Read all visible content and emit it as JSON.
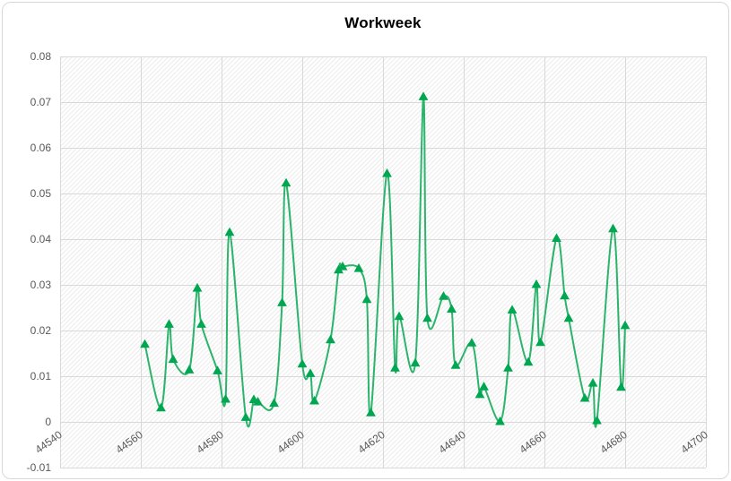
{
  "chart_data": {
    "type": "line",
    "title": "Workweek",
    "series_name": "Workweek",
    "marker": "triangle-up",
    "smoothed": true,
    "grid": true,
    "plot_fill_pattern": "light-upward-diagonal-hatch",
    "xlim": [
      44540,
      44700
    ],
    "ylim": [
      -0.01,
      0.08
    ],
    "x_tick_labels": [
      "44540",
      "44560",
      "44580",
      "44600",
      "44620",
      "44640",
      "44660",
      "44680",
      "44700"
    ],
    "x_tick_values": [
      44540,
      44560,
      44580,
      44600,
      44620,
      44640,
      44660,
      44680,
      44700
    ],
    "y_tick_labels": [
      "0.08",
      "0.07",
      "0.06",
      "0.05",
      "0.04",
      "0.03",
      "0.02",
      "0.01",
      "0",
      "-0.01"
    ],
    "y_tick_values": [
      0.08,
      0.07,
      0.06,
      0.05,
      0.04,
      0.03,
      0.02,
      0.01,
      0,
      -0.01
    ],
    "x": [
      44561,
      44565,
      44567,
      44568,
      44572,
      44574,
      44575,
      44579,
      44581,
      44582,
      44586,
      44588,
      44589,
      44593,
      44595,
      44596,
      44600,
      44602,
      44603,
      44607,
      44609,
      44610,
      44614,
      44616,
      44617,
      44621,
      44623,
      44624,
      44628,
      44630,
      44631,
      44635,
      44637,
      44638,
      44642,
      44644,
      44645,
      44649,
      44651,
      44652,
      44656,
      44658,
      44659,
      44663,
      44665,
      44666,
      44670,
      44672,
      44673,
      44677,
      44679,
      44680
    ],
    "values": [
      0.017,
      0.0031,
      0.0214,
      0.0137,
      0.0114,
      0.0293,
      0.0214,
      0.0112,
      0.005,
      0.0415,
      0.001,
      0.0049,
      0.0044,
      0.0041,
      0.0261,
      0.0523,
      0.0127,
      0.0106,
      0.0046,
      0.018,
      0.0333,
      0.034,
      0.0336,
      0.0268,
      0.002,
      0.0544,
      0.0118,
      0.0231,
      0.0129,
      0.0712,
      0.0227,
      0.0275,
      0.0247,
      0.0124,
      0.0173,
      0.006,
      0.0077,
      0.0001,
      0.0118,
      0.0245,
      0.0131,
      0.0301,
      0.0174,
      0.0402,
      0.0276,
      0.0227,
      0.0052,
      0.0085,
      0.0003,
      0.0423,
      0.0076,
      0.0211
    ],
    "colors": {
      "marker": "#00a650",
      "line": "#2cb46c",
      "gridline": "#d9d9d9",
      "hatch": "#ebebeb",
      "axis_text": "#595959",
      "title_text": "#000000",
      "chart_border": "#d8d8d8"
    },
    "legend": "none"
  }
}
